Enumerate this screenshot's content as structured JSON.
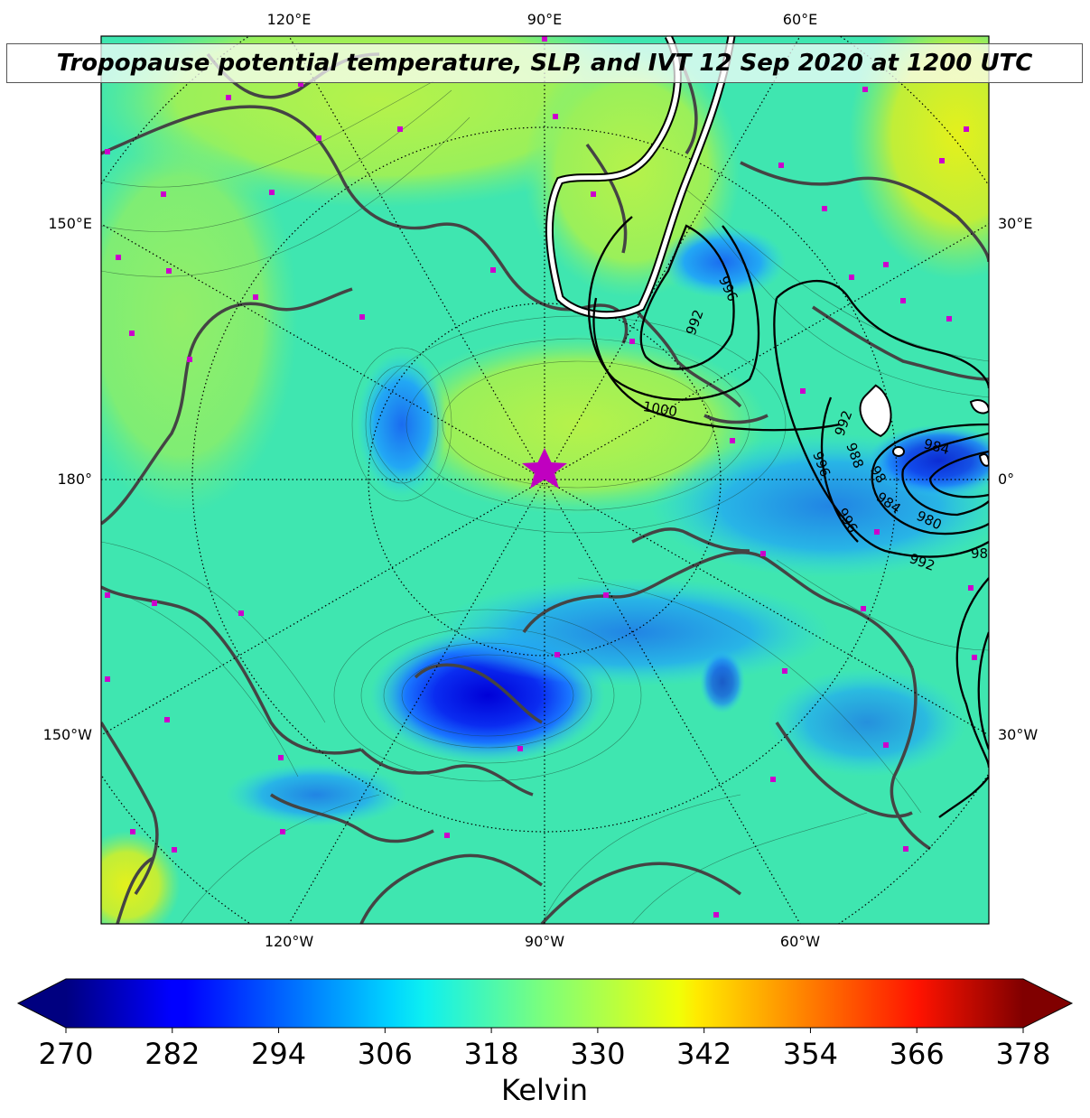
{
  "title": "Tropopause potential temperature, SLP, and IVT 12 Sep 2020 at 1200 UTC",
  "meridian_labels": {
    "top": [
      "120°E",
      "90°E",
      "60°E"
    ],
    "bottom": [
      "120°W",
      "90°W",
      "60°W"
    ],
    "left": [
      "150°E",
      "180°",
      "150°W"
    ],
    "right": [
      "30°E",
      "0°",
      "30°W"
    ]
  },
  "slp_labels": [
    "996",
    "992",
    "1000",
    "992",
    "996",
    "996",
    "988",
    "984",
    "980",
    "984",
    "98",
    "992",
    "98"
  ],
  "colorbar": {
    "label": "Kelvin",
    "ticks": [
      "270",
      "282",
      "294",
      "306",
      "318",
      "330",
      "342",
      "354",
      "366",
      "378"
    ],
    "vmin": 270,
    "vmax": 378,
    "colormap": "jet"
  },
  "colors": {
    "star": "#c000c0",
    "marker": "#cc00cc",
    "coast": "#444444"
  }
}
